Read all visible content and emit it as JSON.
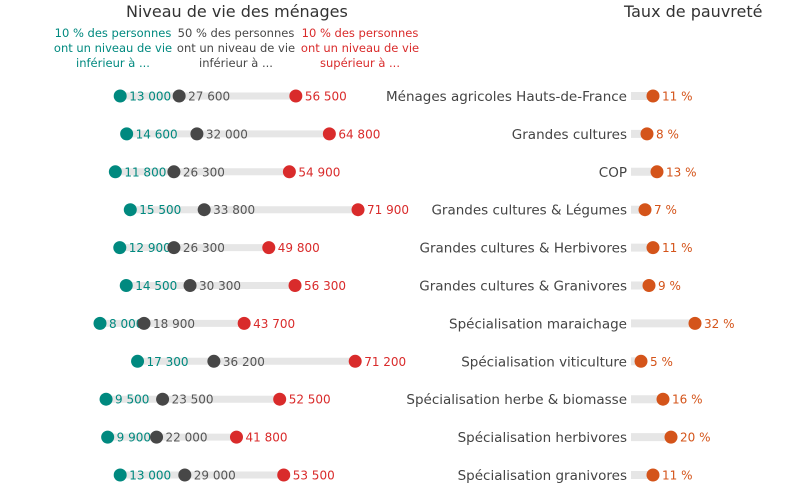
{
  "chart_data": [
    {
      "type": "dot-range",
      "title": "Niveau de vie des ménages",
      "legend": [
        {
          "name": "10 % des personnes ont un niveau de vie inférieur à ...",
          "color": "#00897f"
        },
        {
          "name": "50 % des personnes ont un niveau de vie inférieur à ...",
          "color": "#474747"
        },
        {
          "name": "10 % des personnes ont un niveau de vie supérieur à ...",
          "color": "#d92b2b"
        }
      ],
      "categories": [
        "Ménages agricoles Hauts-de-France",
        "Grandes cultures",
        "COP",
        "Grandes cultures & Légumes",
        "Grandes cultures & Herbivores",
        "Grandes cultures & Granivores",
        "Spécialisation maraichage",
        "Spécialisation viticulture",
        "Spécialisation herbe & biomasse",
        "Spécialisation herbivores",
        "Spécialisation granivores"
      ],
      "series": [
        {
          "name": "10 % des personnes ont un niveau de vie inférieur à ...",
          "values": [
            13000,
            14600,
            11800,
            15500,
            12900,
            14500,
            8000,
            17300,
            9500,
            9900,
            13000
          ],
          "labels": [
            "13 000",
            "14 600",
            "11 800",
            "15 500",
            "12 900",
            "14 500",
            "8 000",
            "17 300",
            "9 500",
            "9 900",
            "13 000"
          ]
        },
        {
          "name": "50 % des personnes ont un niveau de vie inférieur à ...",
          "values": [
            27600,
            32000,
            26300,
            33800,
            26300,
            30300,
            18900,
            36200,
            23500,
            22000,
            29000
          ],
          "labels": [
            "27 600",
            "32 000",
            "26 300",
            "33 800",
            "26 300",
            "30 300",
            "18 900",
            "36 200",
            "23 500",
            "22 000",
            "29 000"
          ]
        },
        {
          "name": "10 % des personnes ont un niveau de vie supérieur à ...",
          "values": [
            56500,
            64800,
            54900,
            71900,
            49800,
            56300,
            43700,
            71200,
            52500,
            41800,
            53500
          ],
          "labels": [
            "56 500",
            "64 800",
            "54 900",
            "71 900",
            "49 800",
            "56 300",
            "43 700",
            "71 200",
            "52 500",
            "41 800",
            "53 500"
          ]
        }
      ]
    },
    {
      "type": "dot-bar",
      "title": "Taux de pauvreté",
      "color": "#d4541a",
      "values": [
        11,
        8,
        13,
        7,
        11,
        9,
        32,
        5,
        16,
        20,
        11
      ],
      "labels": [
        "11 %",
        "8 %",
        "13 %",
        "7 %",
        "11 %",
        "9 %",
        "32 %",
        "5 %",
        "16 %",
        "20 %",
        "11 %"
      ]
    }
  ]
}
